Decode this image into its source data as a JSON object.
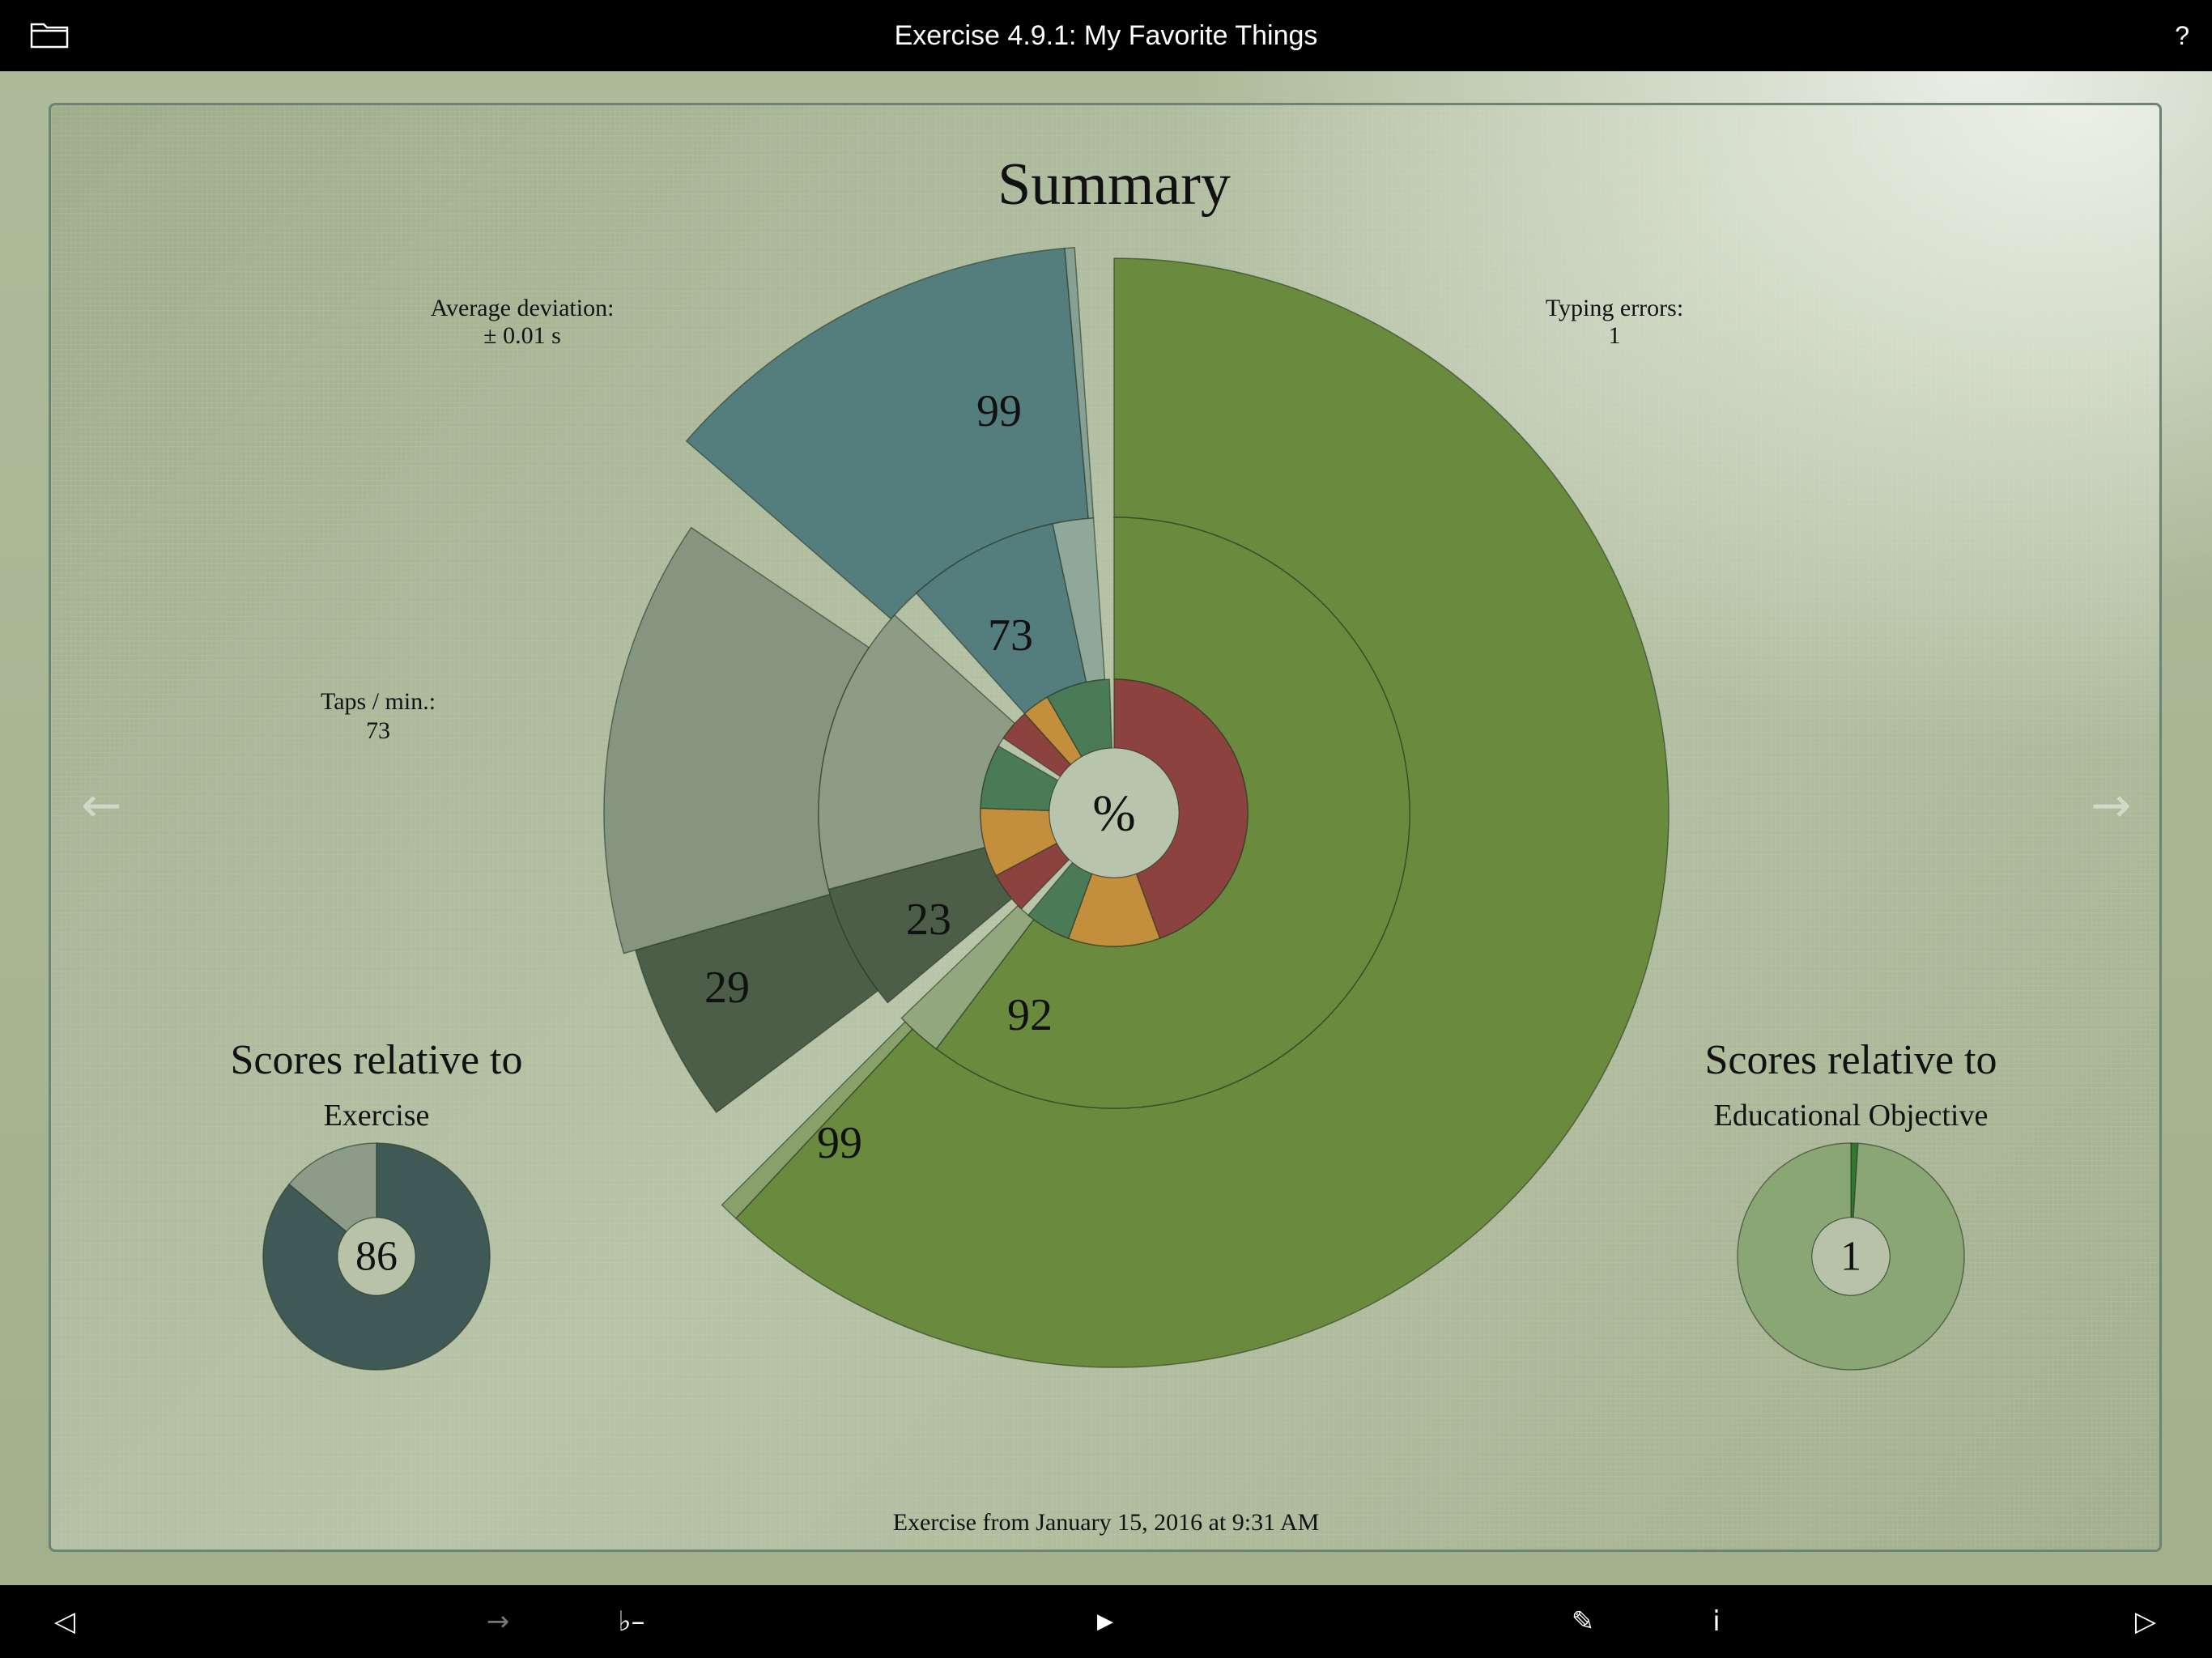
{
  "header": {
    "title": "Exercise 4.9.1: My Favorite Things",
    "help_label": "?"
  },
  "summary": {
    "title": "Summary",
    "center_label": "%",
    "stats": {
      "average_deviation": {
        "label": "Average deviation:",
        "value": "± 0.01 s"
      },
      "taps_per_min": {
        "label": "Taps / min.:",
        "value": "73"
      },
      "typing_errors": {
        "label": "Typing errors:",
        "value": "1"
      }
    },
    "exercise_score": {
      "title": "Scores relative to",
      "subtitle": "Exercise",
      "value": "86"
    },
    "objective_score": {
      "title": "Scores relative to",
      "subtitle": "Educational Objective",
      "value": "1"
    },
    "footer": "Exercise from January 15, 2016 at 9:31 AM"
  },
  "chart_data": [
    {
      "type": "pie",
      "description_type": "sunburst",
      "center_label": "%",
      "outer_ring": {
        "labels": [
          "99",
          "29",
          "99"
        ],
        "values": [
          {
            "label": "99",
            "start_deg": 0,
            "end_deg": 223,
            "color": "#6a8a3e"
          },
          {
            "label": "",
            "start_deg": 223,
            "end_deg": 225,
            "color": "#8aa06a"
          },
          {
            "label": "29",
            "start_deg": 233,
            "end_deg": 254,
            "color": "#4c5e48"
          },
          {
            "label": "",
            "start_deg": 254,
            "end_deg": 304,
            "color": "#869580"
          },
          {
            "label": "99",
            "start_deg": 311,
            "end_deg": 355,
            "color": "#547d7e"
          },
          {
            "label": "",
            "start_deg": 355,
            "end_deg": 356,
            "color": "#86a094"
          }
        ]
      },
      "middle_ring": {
        "labels": [
          "92",
          "23",
          "73"
        ],
        "values": [
          {
            "label": "92",
            "start_deg": 0,
            "end_deg": 217,
            "color": "#6a8a3e"
          },
          {
            "label": "",
            "start_deg": 217,
            "end_deg": 226,
            "color": "#93a77f"
          },
          {
            "label": "23",
            "start_deg": 230,
            "end_deg": 255,
            "color": "#4c5e48"
          },
          {
            "label": "",
            "start_deg": 255,
            "end_deg": 312,
            "color": "#8e9c86"
          },
          {
            "label": "73",
            "start_deg": 318,
            "end_deg": 348,
            "color": "#547d7e"
          },
          {
            "label": "",
            "start_deg": 348,
            "end_deg": 356,
            "color": "#90a89a"
          }
        ]
      },
      "inner_ring": {
        "values": [
          {
            "start_deg": 0,
            "end_deg": 160,
            "color": "#8c4340"
          },
          {
            "start_deg": 160,
            "end_deg": 200,
            "color": "#c48f3c"
          },
          {
            "start_deg": 200,
            "end_deg": 220,
            "color": "#4a7a56"
          },
          {
            "start_deg": 224,
            "end_deg": 242,
            "color": "#8c4340"
          },
          {
            "start_deg": 242,
            "end_deg": 272,
            "color": "#c48f3c"
          },
          {
            "start_deg": 272,
            "end_deg": 300,
            "color": "#4a7a56"
          },
          {
            "start_deg": 304,
            "end_deg": 318,
            "color": "#8c4340"
          },
          {
            "start_deg": 318,
            "end_deg": 330,
            "color": "#c48f3c"
          },
          {
            "start_deg": 330,
            "end_deg": 358,
            "color": "#4a7a56"
          }
        ]
      }
    },
    {
      "type": "pie",
      "description_type": "donut",
      "center_label": "86",
      "values": [
        {
          "label": "86",
          "percent": 86,
          "color": "#3f5a56"
        },
        {
          "label": "",
          "percent": 14,
          "color": "#8d9c88"
        }
      ]
    },
    {
      "type": "pie",
      "description_type": "donut",
      "center_label": "1",
      "values": [
        {
          "label": "1",
          "percent": 1,
          "color": "#2f7a2f"
        },
        {
          "label": "",
          "percent": 99,
          "color": "#8aa675"
        }
      ]
    }
  ],
  "toolbar": {
    "back_label": "◁",
    "next_label": "→",
    "flat_label": "♭–",
    "play_label": "▶",
    "edit_label": "✎",
    "info_label": "i",
    "forward_label": "▷"
  },
  "nav": {
    "prev_label": "←",
    "next_label": "→"
  }
}
